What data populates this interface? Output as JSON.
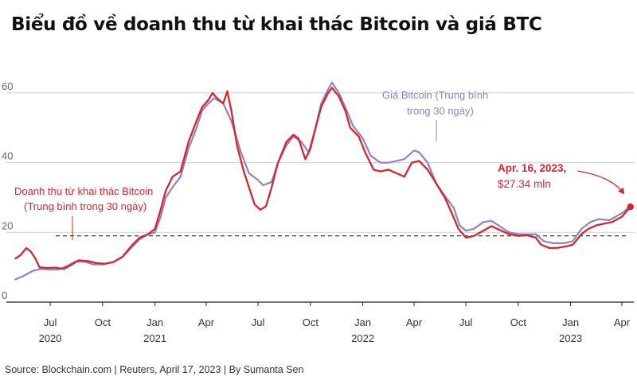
{
  "title": "Biểu đồ về doanh thu từ khai thác Bitcoin và giá BTC",
  "source": "Source: Blockchain.com | Reuters, April 17, 2023 | By Sumanta Sen",
  "chart_data": {
    "type": "line",
    "title": "Biểu đồ về doanh thu từ khai thác Bitcoin và giá BTC",
    "ylim": [
      0,
      65
    ],
    "yticks": [
      0,
      20,
      40,
      60
    ],
    "xlim": [
      "2020-04-15",
      "2023-04-22"
    ],
    "grid": "horizontal",
    "xticks": [
      {
        "date": "2020-07-01",
        "label": "Jul",
        "year": "2020"
      },
      {
        "date": "2020-10-01",
        "label": "Oct",
        "year": ""
      },
      {
        "date": "2021-01-01",
        "label": "Jan",
        "year": "2021"
      },
      {
        "date": "2021-04-01",
        "label": "Apr",
        "year": ""
      },
      {
        "date": "2021-07-01",
        "label": "Jul",
        "year": ""
      },
      {
        "date": "2021-10-01",
        "label": "Oct",
        "year": ""
      },
      {
        "date": "2022-01-01",
        "label": "Jan",
        "year": "2022"
      },
      {
        "date": "2022-04-01",
        "label": "Apr",
        "year": ""
      },
      {
        "date": "2022-07-01",
        "label": "Jul",
        "year": ""
      },
      {
        "date": "2022-10-01",
        "label": "Oct",
        "year": ""
      },
      {
        "date": "2023-01-01",
        "label": "Jan",
        "year": "2023"
      },
      {
        "date": "2023-04-01",
        "label": "Apr",
        "year": ""
      }
    ],
    "reference_line": {
      "y": 19
    },
    "series": [
      {
        "name": "Doanh thu từ khai thác Bitcoin (Trung bình trong 30 ngày)",
        "color": "#d7262b",
        "points": [
          [
            "2020-05-01",
            12.5
          ],
          [
            "2020-05-10",
            13.5
          ],
          [
            "2020-05-20",
            15.5
          ],
          [
            "2020-05-28",
            14.5
          ],
          [
            "2020-06-05",
            12.5
          ],
          [
            "2020-06-12",
            10
          ],
          [
            "2020-06-25",
            9.8
          ],
          [
            "2020-07-10",
            9.9
          ],
          [
            "2020-07-25",
            9.5
          ],
          [
            "2020-08-05",
            10.5
          ],
          [
            "2020-08-20",
            12
          ],
          [
            "2020-09-05",
            11.8
          ],
          [
            "2020-09-20",
            11.2
          ],
          [
            "2020-10-05",
            11
          ],
          [
            "2020-10-20",
            11.5
          ],
          [
            "2020-11-05",
            13
          ],
          [
            "2020-11-20",
            16
          ],
          [
            "2020-12-05",
            18.5
          ],
          [
            "2020-12-20",
            19.5
          ],
          [
            "2021-01-01",
            21
          ],
          [
            "2021-01-10",
            26
          ],
          [
            "2021-01-20",
            32
          ],
          [
            "2021-02-01",
            36
          ],
          [
            "2021-02-15",
            37.5
          ],
          [
            "2021-03-01",
            46
          ],
          [
            "2021-03-15",
            52
          ],
          [
            "2021-03-25",
            56
          ],
          [
            "2021-04-05",
            58
          ],
          [
            "2021-04-12",
            60
          ],
          [
            "2021-04-20",
            58.5
          ],
          [
            "2021-05-01",
            57
          ],
          [
            "2021-05-08",
            60.5
          ],
          [
            "2021-05-15",
            55
          ],
          [
            "2021-05-25",
            45
          ],
          [
            "2021-06-05",
            38
          ],
          [
            "2021-06-15",
            33
          ],
          [
            "2021-06-25",
            28
          ],
          [
            "2021-07-05",
            26.5
          ],
          [
            "2021-07-15",
            27.5
          ],
          [
            "2021-07-25",
            33
          ],
          [
            "2021-08-05",
            40
          ],
          [
            "2021-08-20",
            46
          ],
          [
            "2021-09-01",
            48
          ],
          [
            "2021-09-10",
            47
          ],
          [
            "2021-09-22",
            41
          ],
          [
            "2021-10-01",
            44
          ],
          [
            "2021-10-10",
            50
          ],
          [
            "2021-10-20",
            56
          ],
          [
            "2021-11-01",
            60
          ],
          [
            "2021-11-08",
            61.5
          ],
          [
            "2021-11-20",
            59
          ],
          [
            "2021-12-01",
            55
          ],
          [
            "2021-12-10",
            50
          ],
          [
            "2021-12-25",
            47.5
          ],
          [
            "2022-01-05",
            43
          ],
          [
            "2022-01-20",
            38
          ],
          [
            "2022-02-01",
            37.5
          ],
          [
            "2022-02-15",
            38
          ],
          [
            "2022-03-01",
            37
          ],
          [
            "2022-03-15",
            36
          ],
          [
            "2022-03-28",
            40
          ],
          [
            "2022-04-10",
            40.5
          ],
          [
            "2022-04-25",
            38
          ],
          [
            "2022-05-10",
            34
          ],
          [
            "2022-05-25",
            30
          ],
          [
            "2022-06-05",
            26
          ],
          [
            "2022-06-18",
            21
          ],
          [
            "2022-07-01",
            18.5
          ],
          [
            "2022-07-15",
            19
          ],
          [
            "2022-08-01",
            20.5
          ],
          [
            "2022-08-15",
            21.8
          ],
          [
            "2022-09-01",
            20.5
          ],
          [
            "2022-09-15",
            19.5
          ],
          [
            "2022-10-01",
            19
          ],
          [
            "2022-10-15",
            19.2
          ],
          [
            "2022-11-01",
            18.5
          ],
          [
            "2022-11-10",
            16.5
          ],
          [
            "2022-11-25",
            15.5
          ],
          [
            "2022-12-10",
            15.6
          ],
          [
            "2022-12-25",
            16
          ],
          [
            "2023-01-05",
            16.5
          ],
          [
            "2023-01-20",
            19.5
          ],
          [
            "2023-02-01",
            21
          ],
          [
            "2023-02-15",
            22
          ],
          [
            "2023-03-01",
            22.5
          ],
          [
            "2023-03-15",
            23
          ],
          [
            "2023-04-01",
            24.5
          ],
          [
            "2023-04-16",
            27.34
          ]
        ]
      },
      {
        "name": "Giá Bitcoin (Trung bình trong 30 ngày)",
        "color": "#8e83c4",
        "points": [
          [
            "2020-05-01",
            6.5
          ],
          [
            "2020-05-15",
            7.5
          ],
          [
            "2020-06-01",
            9
          ],
          [
            "2020-06-15",
            9.5
          ],
          [
            "2020-07-01",
            9.3
          ],
          [
            "2020-07-15",
            9.3
          ],
          [
            "2020-08-01",
            10.5
          ],
          [
            "2020-08-15",
            11.7
          ],
          [
            "2020-09-01",
            11.5
          ],
          [
            "2020-09-15",
            10.8
          ],
          [
            "2020-10-01",
            10.8
          ],
          [
            "2020-10-20",
            11.5
          ],
          [
            "2020-11-05",
            13
          ],
          [
            "2020-11-20",
            15.5
          ],
          [
            "2020-12-05",
            18
          ],
          [
            "2020-12-20",
            19.5
          ],
          [
            "2021-01-01",
            20
          ],
          [
            "2021-01-10",
            24
          ],
          [
            "2021-01-20",
            30
          ],
          [
            "2021-02-01",
            33
          ],
          [
            "2021-02-15",
            36
          ],
          [
            "2021-03-01",
            44
          ],
          [
            "2021-03-15",
            50
          ],
          [
            "2021-03-25",
            55
          ],
          [
            "2021-04-05",
            57
          ],
          [
            "2021-04-15",
            58.5
          ],
          [
            "2021-05-01",
            57
          ],
          [
            "2021-05-15",
            52
          ],
          [
            "2021-06-01",
            43
          ],
          [
            "2021-06-15",
            37
          ],
          [
            "2021-07-01",
            35
          ],
          [
            "2021-07-10",
            33.5
          ],
          [
            "2021-07-25",
            34.5
          ],
          [
            "2021-08-05",
            40
          ],
          [
            "2021-08-20",
            45
          ],
          [
            "2021-09-01",
            47.5
          ],
          [
            "2021-09-15",
            46
          ],
          [
            "2021-09-28",
            43
          ],
          [
            "2021-10-10",
            50
          ],
          [
            "2021-10-20",
            57
          ],
          [
            "2021-11-01",
            61
          ],
          [
            "2021-11-08",
            63
          ],
          [
            "2021-11-20",
            60
          ],
          [
            "2021-12-01",
            56
          ],
          [
            "2021-12-15",
            50.5
          ],
          [
            "2022-01-01",
            47
          ],
          [
            "2022-01-15",
            42
          ],
          [
            "2022-02-01",
            40
          ],
          [
            "2022-02-15",
            40
          ],
          [
            "2022-03-01",
            40.5
          ],
          [
            "2022-03-15",
            41
          ],
          [
            "2022-04-01",
            43.5
          ],
          [
            "2022-04-10",
            43
          ],
          [
            "2022-04-25",
            40
          ],
          [
            "2022-05-10",
            34
          ],
          [
            "2022-05-25",
            30.5
          ],
          [
            "2022-06-10",
            27
          ],
          [
            "2022-06-20",
            22
          ],
          [
            "2022-07-01",
            20.5
          ],
          [
            "2022-07-15",
            21
          ],
          [
            "2022-08-01",
            23
          ],
          [
            "2022-08-15",
            23.3
          ],
          [
            "2022-09-01",
            21.5
          ],
          [
            "2022-09-15",
            20
          ],
          [
            "2022-10-01",
            19.5
          ],
          [
            "2022-10-15",
            19.4
          ],
          [
            "2022-11-01",
            19.5
          ],
          [
            "2022-11-15",
            17.5
          ],
          [
            "2022-12-01",
            16.9
          ],
          [
            "2022-12-20",
            16.9
          ],
          [
            "2023-01-05",
            17.5
          ],
          [
            "2023-01-20",
            21
          ],
          [
            "2023-02-05",
            23
          ],
          [
            "2023-02-20",
            23.8
          ],
          [
            "2023-03-10",
            23.5
          ],
          [
            "2023-04-01",
            25.5
          ],
          [
            "2023-04-16",
            27.5
          ]
        ]
      }
    ],
    "annotations": [
      {
        "lines": [
          "Doanh thu từ khai thác Bitcoin",
          "(Trung bình trong 30 ngày)"
        ],
        "color": "#d7262b"
      },
      {
        "lines": [
          "Giá Bitcoin (Trung bình",
          "trong 30 ngày)"
        ],
        "color": "#8e83c4"
      },
      {
        "date": "Apr. 16, 2023,",
        "value": "$27.34 mln",
        "color": "#d7262b"
      }
    ]
  }
}
